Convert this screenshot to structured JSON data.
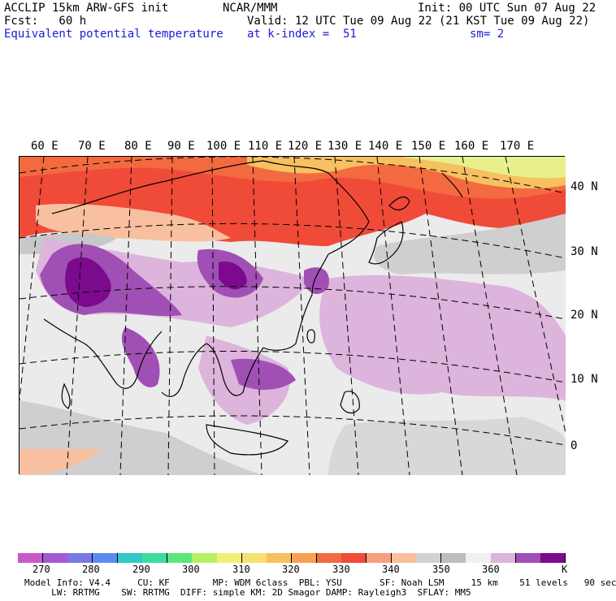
{
  "header": {
    "title_left": "ACCLIP 15km ARW-GFS init",
    "title_center": "NCAR/MMM",
    "init": "Init: 00 UTC Sun 07 Aug 22",
    "fcst": "Fcst:   60 h",
    "valid": "Valid: 12 UTC Tue 09 Aug 22 (21 KST Tue 09 Aug 22)",
    "field": "Equivalent potential temperature",
    "level": "at k-index =  51",
    "smooth": "sm= 2"
  },
  "map": {
    "lon_labels": [
      "60 E",
      "70 E",
      "80 E",
      "90 E",
      "100 E",
      "110 E",
      "120 E",
      "130 E",
      "140 E",
      "150 E",
      "160 E",
      "170 E"
    ],
    "lat_labels": [
      "40 N",
      "30 N",
      "20 N",
      "10 N",
      "0"
    ]
  },
  "legend": {
    "colors": [
      "#c85ac8",
      "#a05ad2",
      "#7878e6",
      "#5a8cf0",
      "#32c8c8",
      "#3cdca0",
      "#5ae67a",
      "#b4f064",
      "#f0f078",
      "#f6e070",
      "#f7c060",
      "#f7a050",
      "#f46a40",
      "#f04a38",
      "#f6a080",
      "#f8c0a0",
      "#d2d2d2",
      "#bebebe",
      "#f0f0f0",
      "#dcb4dc",
      "#a050b4",
      "#7c0a8c"
    ],
    "ticks": [
      "270",
      "280",
      "290",
      "300",
      "310",
      "320",
      "330",
      "340",
      "350",
      "360"
    ],
    "unit": "K"
  },
  "footer": {
    "line1": "Model Info: V4.4     CU: KF        MP: WDM 6class  PBL: YSU       SF: Noah LSM     15 km    51 levels   90 sec",
    "line2": "     LW: RRTMG    SW: RRTMG  DIFF: simple KM: 2D Smagor DAMP: Rayleigh3  SFLAY: MM5"
  }
}
